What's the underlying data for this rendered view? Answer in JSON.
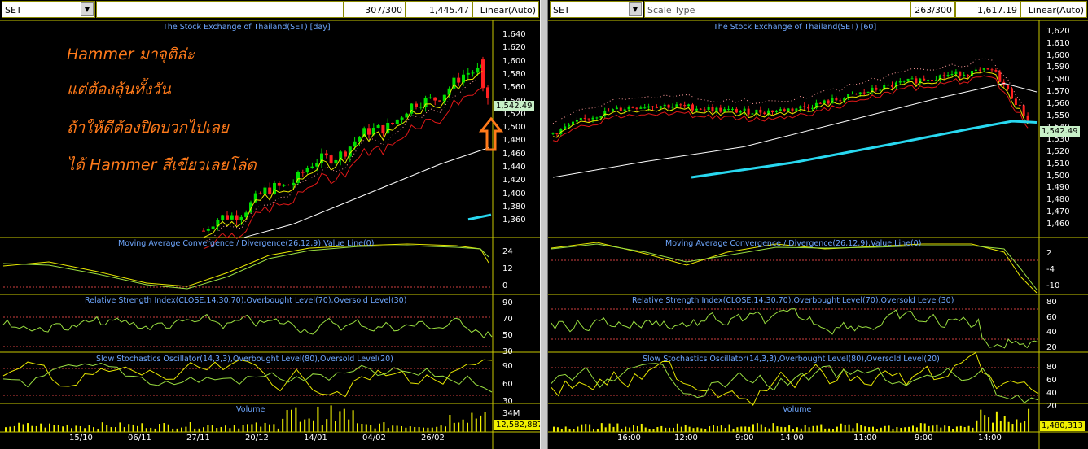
{
  "left": {
    "symbol": "SET",
    "scale_type": "",
    "bar_count": "307/300",
    "price": "1,445.47",
    "scale_mode": "Linear(Auto)",
    "main_title": "The Stock Exchange of Thailand(SET) [day]",
    "price_axis": [
      "1,640",
      "1,620",
      "1,600",
      "1,580",
      "1,560",
      "1,540",
      "1,520",
      "1,500",
      "1,480",
      "1,460",
      "1,440",
      "1,420",
      "1,400",
      "1,380",
      "1,360"
    ],
    "last_price": "1,542.49",
    "macd_title": "Moving Average Convergence / Divergence(26,12,9),Value Line(0)",
    "macd_axis": [
      "24",
      "12",
      "0"
    ],
    "rsi_title": "Relative Strength Index(CLOSE,14,30,70),Overbought Level(70),Oversold Level(30)",
    "rsi_axis": [
      "90",
      "70",
      "50",
      "30"
    ],
    "stoch_title": "Slow Stochastics Oscillator(14,3,3),Overbought Level(80),Oversold Level(20)",
    "stoch_axis": [
      "90",
      "60",
      "30"
    ],
    "volume_title": "Volume",
    "volume_axis": "34M",
    "last_volume": "12,582,887",
    "date_labels": [
      "15/10",
      "06/11",
      "27/11",
      "20/12",
      "14/01",
      "04/02",
      "26/02"
    ],
    "annotation": [
      "Hammer มาจุติล่ะ",
      "แต่ต้องลุ้นทั้งวัน",
      "ถ้าให้ดีต้องปิดบวกไปเลย",
      "ได้ Hammer สีเขียวเลยโล่ด"
    ]
  },
  "right": {
    "symbol": "SET",
    "scale_type": "Scale Type",
    "bar_count": "263/300",
    "price": "1,617.19",
    "scale_mode": "Linear(Auto)",
    "main_title": "The Stock Exchange of Thailand(SET) [60]",
    "price_axis": [
      "1,620",
      "1,610",
      "1,600",
      "1,590",
      "1,580",
      "1,570",
      "1,560",
      "1,550",
      "1,540",
      "1,530",
      "1,520",
      "1,510",
      "1,500",
      "1,490",
      "1,480",
      "1,470",
      "1,460"
    ],
    "last_price": "1,542.49",
    "macd_title": "Moving Average Convergence / Divergence(26,12,9),Value Line(0)",
    "macd_axis": [
      "2",
      "-4",
      "-10"
    ],
    "rsi_title": "Relative Strength Index(CLOSE,14,30,70),Overbought Level(70),Oversold Level(30)",
    "rsi_axis": [
      "80",
      "60",
      "40",
      "20"
    ],
    "stoch_title": "Slow Stochastics Oscillator(14,3,3),Overbought Level(80),Oversold Level(20)",
    "stoch_axis": [
      "80",
      "60",
      "40",
      "20"
    ],
    "volume_title": "Volume",
    "last_volume": "1,480,313",
    "time_labels": [
      "16:00",
      "12:00",
      "9:00",
      "14:00",
      "11:00",
      "9:00",
      "14:00"
    ]
  },
  "colors": {
    "background": "#000000",
    "bull_candle": "#00e000",
    "bear_candle": "#ff2020",
    "grid_yellow": "#c8c800",
    "title_blue": "#6fa8ff",
    "annotation_orange": "#ff7a1a",
    "ma_white": "#ffffff",
    "ma_red": "#e01818",
    "ma_yellow": "#e8e800",
    "trend_cyan": "#28d8f0",
    "volume_yellow": "#f0f000"
  }
}
